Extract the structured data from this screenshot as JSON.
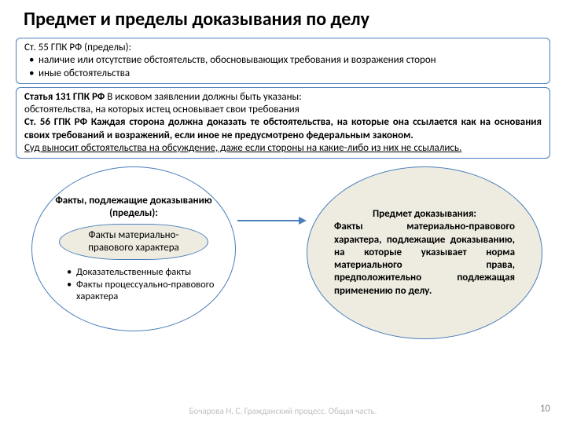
{
  "title": "Предмет и пределы доказывания по делу",
  "box1": {
    "heading": "Ст. 55 ГПК РФ (пределы):",
    "b1": "наличие или отсутствие обстоятельств, обосновывающих требования и возражения сторон",
    "b2": "иные обстоятельства"
  },
  "box2": {
    "l1a": "Статья 131 ГПК РФ",
    "l1b": " В исковом заявлении должны быть указаны:",
    "l2": "обстоятельства, на которых истец основывает свои требования",
    "l3a": "Ст. 56 ГПК РФ Каждая сторона должна доказать те обстоятельства, на которые она ссылается как на основания своих требований и возражений, если иное не предусмотрено федеральным законом.",
    "l4": "Суд выносит обстоятельства на обсуждение, даже если стороны на какие-либо из них не ссылались."
  },
  "ovalLeft": {
    "h": "Факты, подлежащие доказыванию (пределы):",
    "inner": "Факты материально-правового характера",
    "s1": "Доказательственные факты",
    "s2": "Факты процессуально-правового характера"
  },
  "ovalRight": {
    "h": "Предмет доказывания:",
    "body": "Факты материально-правового характера, подлежащие доказыванию, на которые указывает норма материального права, предположительно подлежащая применению по делу."
  },
  "footer": "Бочарова Н. С. Гражданский процесс. Общая часть.",
  "page": "10"
}
